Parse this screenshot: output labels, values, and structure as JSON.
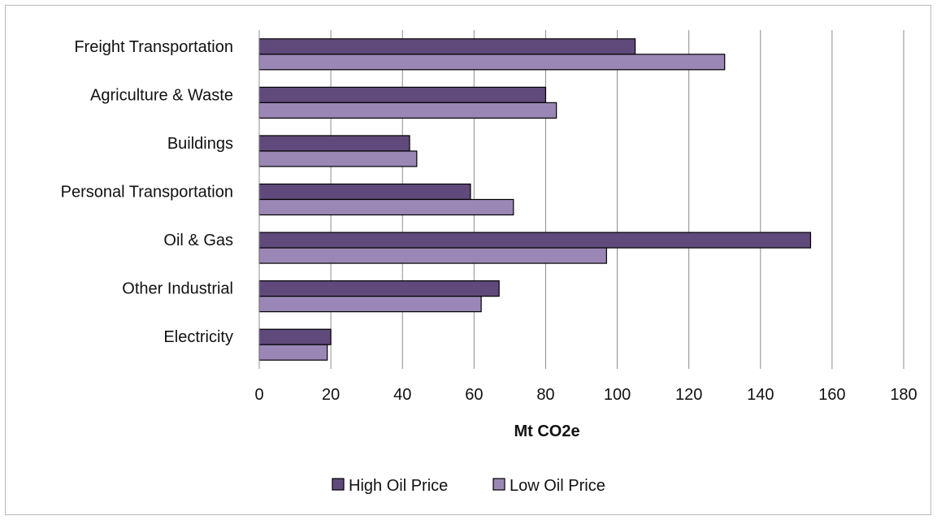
{
  "chart_data": {
    "type": "bar",
    "orientation": "horizontal",
    "categories": [
      "Freight Transportation",
      "Agriculture & Waste",
      "Buildings",
      "Personal Transportation",
      "Oil & Gas",
      "Other Industrial",
      "Electricity"
    ],
    "series": [
      {
        "name": "High Oil Price",
        "color": "#604a7b",
        "values": [
          105,
          80,
          42,
          59,
          154,
          67,
          20
        ]
      },
      {
        "name": "Low Oil Price",
        "color": "#9b87b5",
        "values": [
          130,
          83,
          44,
          71,
          97,
          62,
          19
        ]
      }
    ],
    "title": "",
    "xlabel": "Mt CO2e",
    "ylabel": "",
    "xlim": [
      0,
      180
    ],
    "xticks": [
      0,
      20,
      40,
      60,
      80,
      100,
      120,
      140,
      160,
      180
    ],
    "grid": "vertical",
    "legend": "bottom"
  }
}
